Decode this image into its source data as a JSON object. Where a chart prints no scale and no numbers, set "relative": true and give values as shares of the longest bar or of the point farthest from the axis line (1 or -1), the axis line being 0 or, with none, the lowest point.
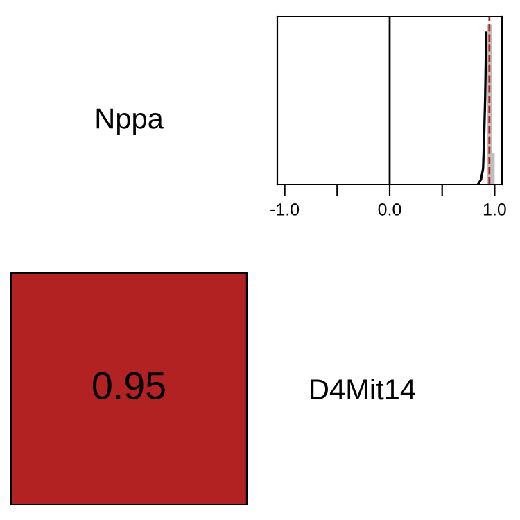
{
  "chart_data": [
    {
      "type": "histogram",
      "relative": true,
      "bins": [
        0.925,
        0.95,
        0.975,
        1.0
      ],
      "values": [
        1,
        1,
        0.2
      ],
      "color": "#bebebe",
      "series": [
        {
          "type": "line",
          "x": [
            0.84,
            0.87,
            0.89,
            0.9,
            0.91,
            0.915,
            0.92
          ],
          "values": [
            0,
            0.03,
            0.1,
            0.3,
            0.55,
            0.75,
            0.95
          ],
          "color": "#000000"
        }
      ],
      "xlim": [
        -1.07,
        1.07
      ],
      "xticks": [
        {
          "value": -1.0,
          "label": "-1.0"
        },
        {
          "value": -0.5,
          "label": null
        },
        {
          "value": 0.0,
          "label": "0.0"
        },
        {
          "value": 0.5,
          "label": null
        },
        {
          "value": 1.0,
          "label": "1.0"
        }
      ],
      "ref_lines": [
        {
          "axis": "x",
          "value": 0,
          "color": "#000000",
          "line_style": "solid"
        },
        {
          "axis": "x",
          "value": 0.95,
          "color": "#b22222",
          "line_style": "dashed"
        }
      ],
      "tick_labels": "x"
    },
    {
      "type": "heatmap",
      "categories": [
        "Nppa"
      ],
      "y_categories": [
        "D4Mit14"
      ],
      "cells": [
        [
          0.95
        ]
      ],
      "colors": [
        "#b22222"
      ],
      "data_labels": true
    }
  ]
}
